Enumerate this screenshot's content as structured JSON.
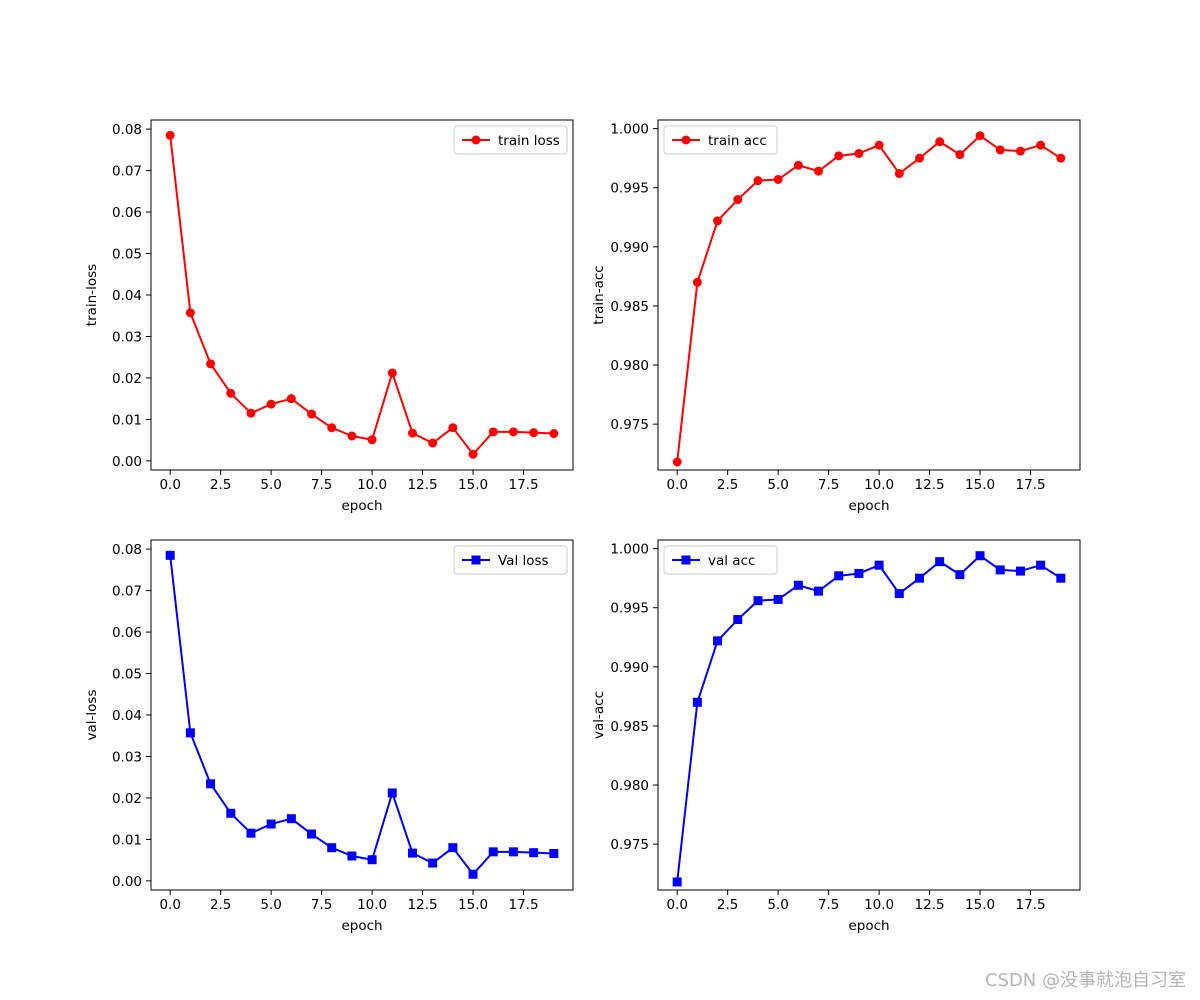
{
  "chart_data": [
    {
      "type": "line",
      "xlabel": "epoch",
      "ylabel": "train-loss",
      "xlim": [
        -0.95,
        19.95
      ],
      "ylim": [
        -0.0022,
        0.0822
      ],
      "xticks": [
        0.0,
        2.5,
        5.0,
        7.5,
        10.0,
        12.5,
        15.0,
        17.5
      ],
      "yticks": [
        0.0,
        0.01,
        0.02,
        0.03,
        0.04,
        0.05,
        0.06,
        0.07,
        0.08
      ],
      "xtick_decimals": 1,
      "ytick_decimals": 2,
      "grid": false,
      "legend_position": "top-right",
      "series": [
        {
          "name": "train loss",
          "color": "#ff0000",
          "marker": "circle",
          "x": [
            0,
            1,
            2,
            3,
            4,
            5,
            6,
            7,
            8,
            9,
            10,
            11,
            12,
            13,
            14,
            15,
            16,
            17,
            18,
            19
          ],
          "y": [
            0.0785,
            0.0357,
            0.0234,
            0.0163,
            0.0115,
            0.0137,
            0.015,
            0.0113,
            0.008,
            0.006,
            0.0051,
            0.0212,
            0.0067,
            0.0043,
            0.008,
            0.0016,
            0.007,
            0.007,
            0.0068,
            0.0066
          ]
        }
      ]
    },
    {
      "type": "line",
      "xlabel": "epoch",
      "ylabel": "train-acc",
      "xlim": [
        -0.95,
        19.95
      ],
      "ylim": [
        0.97112,
        1.00073
      ],
      "xticks": [
        0.0,
        2.5,
        5.0,
        7.5,
        10.0,
        12.5,
        15.0,
        17.5
      ],
      "yticks": [
        0.975,
        0.98,
        0.985,
        0.99,
        0.995,
        1.0
      ],
      "xtick_decimals": 1,
      "ytick_decimals": 3,
      "grid": false,
      "legend_position": "top-left",
      "series": [
        {
          "name": "train acc",
          "color": "#ff0000",
          "marker": "circle",
          "x": [
            0,
            1,
            2,
            3,
            4,
            5,
            6,
            7,
            8,
            9,
            10,
            11,
            12,
            13,
            14,
            15,
            16,
            17,
            18,
            19
          ],
          "y": [
            0.9718,
            0.987,
            0.9922,
            0.994,
            0.9956,
            0.9957,
            0.9969,
            0.9964,
            0.9977,
            0.9979,
            0.9986,
            0.9962,
            0.9975,
            0.9989,
            0.9978,
            0.9994,
            0.9982,
            0.9981,
            0.9986,
            0.9975
          ]
        }
      ]
    },
    {
      "type": "line",
      "xlabel": "epoch",
      "ylabel": "val-loss",
      "xlim": [
        -0.95,
        19.95
      ],
      "ylim": [
        -0.0022,
        0.0822
      ],
      "xticks": [
        0.0,
        2.5,
        5.0,
        7.5,
        10.0,
        12.5,
        15.0,
        17.5
      ],
      "yticks": [
        0.0,
        0.01,
        0.02,
        0.03,
        0.04,
        0.05,
        0.06,
        0.07,
        0.08
      ],
      "xtick_decimals": 1,
      "ytick_decimals": 2,
      "grid": false,
      "legend_position": "top-right",
      "series": [
        {
          "name": "Val loss",
          "color": "#0000ff",
          "marker": "square",
          "x": [
            0,
            1,
            2,
            3,
            4,
            5,
            6,
            7,
            8,
            9,
            10,
            11,
            12,
            13,
            14,
            15,
            16,
            17,
            18,
            19
          ],
          "y": [
            0.0785,
            0.0357,
            0.0234,
            0.0163,
            0.0115,
            0.0137,
            0.015,
            0.0113,
            0.008,
            0.006,
            0.0051,
            0.0212,
            0.0067,
            0.0043,
            0.008,
            0.0016,
            0.007,
            0.007,
            0.0068,
            0.0066
          ]
        }
      ]
    },
    {
      "type": "line",
      "xlabel": "epoch",
      "ylabel": "val-acc",
      "xlim": [
        -0.95,
        19.95
      ],
      "ylim": [
        0.97112,
        1.00073
      ],
      "xticks": [
        0.0,
        2.5,
        5.0,
        7.5,
        10.0,
        12.5,
        15.0,
        17.5
      ],
      "yticks": [
        0.975,
        0.98,
        0.985,
        0.99,
        0.995,
        1.0
      ],
      "xtick_decimals": 1,
      "ytick_decimals": 3,
      "grid": false,
      "legend_position": "top-left",
      "series": [
        {
          "name": "val acc",
          "color": "#0000ff",
          "marker": "square",
          "x": [
            0,
            1,
            2,
            3,
            4,
            5,
            6,
            7,
            8,
            9,
            10,
            11,
            12,
            13,
            14,
            15,
            16,
            17,
            18,
            19
          ],
          "y": [
            0.9718,
            0.987,
            0.9922,
            0.994,
            0.9956,
            0.9957,
            0.9969,
            0.9964,
            0.9977,
            0.9979,
            0.9986,
            0.9962,
            0.9975,
            0.9989,
            0.9978,
            0.9994,
            0.9982,
            0.9981,
            0.9986,
            0.9975
          ]
        }
      ]
    }
  ],
  "watermark": "CSDN @没事就泡自习室"
}
